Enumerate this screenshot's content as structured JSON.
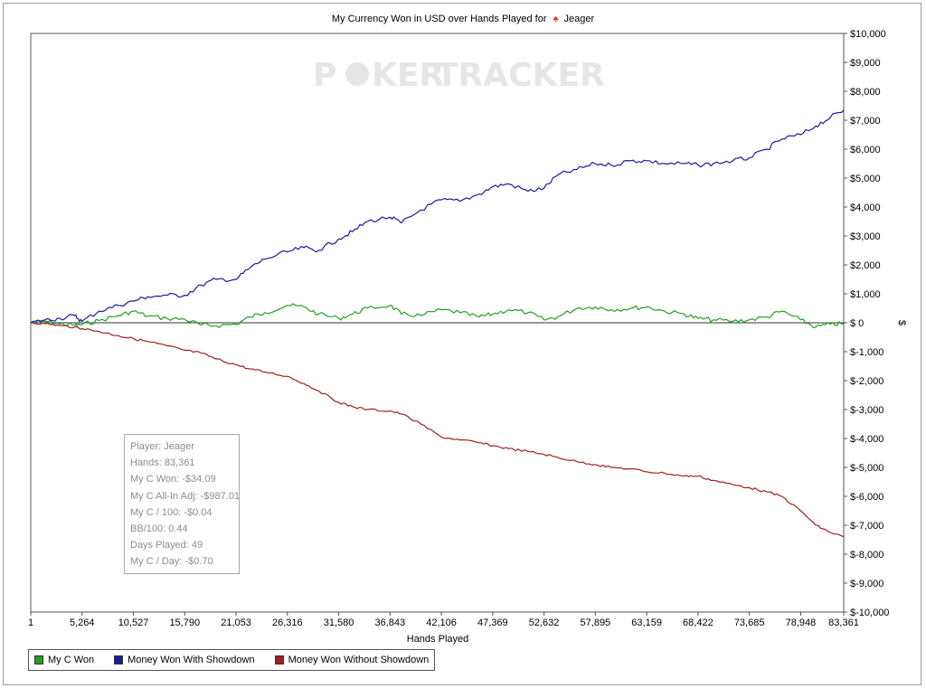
{
  "window": {
    "title_prefix": "My Currency Won in USD over Hands Played for",
    "player_name": "Jeager"
  },
  "watermark": {
    "text_left": "P",
    "text_mid": "KER",
    "text_right": "TRACKER"
  },
  "stats_box": {
    "lines": [
      "Player: Jeager",
      "Hands: 83,361",
      "My C Won: -$34.09",
      "My C All-In Adj: -$987.01",
      "My C / 100: -$0.04",
      "BB/100: 0.44",
      "Days Played: 49",
      "My C / Day: -$0.70"
    ]
  },
  "legend": {
    "items": [
      {
        "label": "My C Won",
        "color": "#22a022"
      },
      {
        "label": "Money Won With Showdown",
        "color": "#1a1aa0"
      },
      {
        "label": "Money Won Without Showdown",
        "color": "#a02020"
      }
    ]
  },
  "chart_data": {
    "type": "line",
    "title": "My Currency Won in USD over Hands Played for Jeager",
    "xlabel": "Hands Played",
    "ylabel": "$",
    "xlim": [
      1,
      83361
    ],
    "ylim": [
      -10000,
      10000
    ],
    "x_ticks": [
      1,
      5264,
      10527,
      15790,
      21053,
      26316,
      31580,
      36843,
      42106,
      47369,
      52632,
      57895,
      63159,
      68422,
      73685,
      78948,
      83361
    ],
    "x_tick_labels": [
      "1",
      "5,264",
      "10,527",
      "15,790",
      "21,053",
      "26,316",
      "31,580",
      "36,843",
      "42,106",
      "47,369",
      "52,632",
      "57,895",
      "63,159",
      "68,422",
      "73,685",
      "78,948",
      "83,361"
    ],
    "y_ticks": [
      10000,
      9000,
      8000,
      7000,
      6000,
      5000,
      4000,
      3000,
      2000,
      1000,
      0,
      -1000,
      -2000,
      -3000,
      -4000,
      -5000,
      -6000,
      -7000,
      -8000,
      -9000,
      -10000
    ],
    "y_tick_labels": [
      "$10,000",
      "$9,000",
      "$8,000",
      "$7,000",
      "$6,000",
      "$5,000",
      "$4,000",
      "$3,000",
      "$2,000",
      "$1,000",
      "$ 0",
      "$-1,000",
      "$-2,000",
      "$-3,000",
      "$-4,000",
      "$-5,000",
      "$-6,000",
      "$-7,000",
      "$-8,000",
      "$-9,000",
      "$-10,000"
    ],
    "grid": false,
    "legend_position": "bottom-left",
    "series": [
      {
        "name": "My C Won",
        "color": "#22a022",
        "x": [
          1,
          1500,
          3000,
          4500,
          5264,
          7000,
          9000,
          10527,
          12000,
          14000,
          15790,
          17500,
          19000,
          21053,
          22500,
          24000,
          26316,
          28000,
          29500,
          31580,
          33000,
          34500,
          36843,
          38000,
          40000,
          42106,
          44000,
          46000,
          47369,
          49000,
          51000,
          52632,
          54000,
          56000,
          57895,
          59500,
          61500,
          63159,
          65000,
          67000,
          68422,
          70000,
          72000,
          73685,
          75500,
          77000,
          78948,
          80500,
          82000,
          83361
        ],
        "y": [
          0,
          50,
          -40,
          -80,
          -60,
          80,
          250,
          400,
          230,
          150,
          120,
          -80,
          -100,
          -50,
          200,
          350,
          600,
          550,
          300,
          150,
          300,
          500,
          600,
          300,
          250,
          450,
          350,
          200,
          300,
          450,
          350,
          100,
          200,
          500,
          550,
          450,
          500,
          550,
          400,
          300,
          150,
          100,
          50,
          100,
          200,
          400,
          100,
          -150,
          -50,
          -34
        ]
      },
      {
        "name": "Money Won With Showdown",
        "color": "#1a1aa0",
        "x": [
          1,
          1500,
          3000,
          4500,
          5264,
          7000,
          9000,
          10527,
          12000,
          14000,
          15790,
          17500,
          19000,
          21053,
          22500,
          24000,
          26316,
          28000,
          29500,
          31580,
          33000,
          34500,
          36843,
          38000,
          40000,
          42106,
          44000,
          46000,
          47369,
          49000,
          51000,
          52632,
          54000,
          56000,
          57895,
          59500,
          61500,
          63159,
          65000,
          67000,
          68422,
          70000,
          72000,
          73685,
          75500,
          77000,
          78948,
          80500,
          82000,
          83361
        ],
        "y": [
          0,
          100,
          150,
          250,
          50,
          400,
          600,
          750,
          900,
          950,
          950,
          1300,
          1500,
          1500,
          1900,
          2200,
          2450,
          2600,
          2500,
          2900,
          3150,
          3500,
          3650,
          3450,
          3900,
          4250,
          4200,
          4450,
          4700,
          4800,
          4550,
          4650,
          5100,
          5300,
          5500,
          5450,
          5600,
          5600,
          5500,
          5500,
          5450,
          5500,
          5600,
          5700,
          6000,
          6350,
          6500,
          6800,
          7100,
          7350
        ]
      },
      {
        "name": "Money Won Without Showdown",
        "color": "#a02020",
        "x": [
          1,
          1500,
          3000,
          4500,
          5264,
          7000,
          9000,
          10527,
          12000,
          14000,
          15790,
          17500,
          19000,
          21053,
          22500,
          24000,
          26316,
          28000,
          29500,
          31580,
          33000,
          34500,
          36843,
          38000,
          40000,
          42106,
          44000,
          46000,
          47369,
          49000,
          51000,
          52632,
          54000,
          56000,
          57895,
          59500,
          61500,
          63159,
          65000,
          67000,
          68422,
          70000,
          72000,
          73685,
          75500,
          77000,
          78948,
          80500,
          82000,
          83361
        ],
        "y": [
          0,
          -30,
          -100,
          -150,
          -200,
          -300,
          -450,
          -550,
          -650,
          -800,
          -950,
          -1050,
          -1250,
          -1450,
          -1600,
          -1700,
          -1850,
          -2100,
          -2350,
          -2750,
          -2900,
          -3000,
          -3050,
          -3150,
          -3500,
          -3950,
          -4050,
          -4150,
          -4250,
          -4350,
          -4450,
          -4550,
          -4650,
          -4800,
          -4900,
          -5000,
          -5050,
          -5150,
          -5200,
          -5300,
          -5300,
          -5450,
          -5600,
          -5700,
          -5850,
          -6000,
          -6500,
          -7000,
          -7250,
          -7400
        ]
      }
    ]
  }
}
